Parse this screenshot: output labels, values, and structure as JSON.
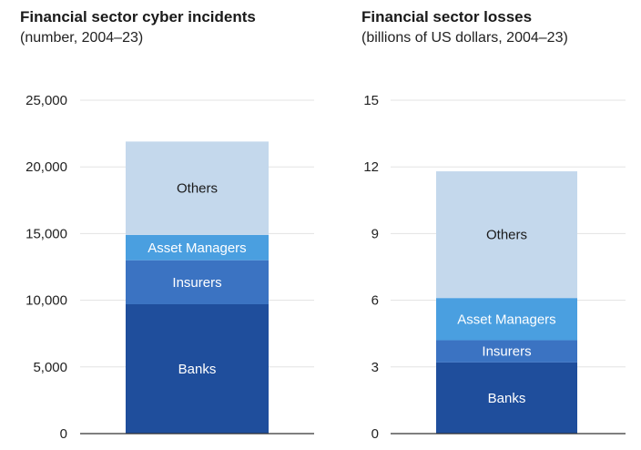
{
  "chart_data": [
    {
      "type": "bar",
      "stacked": true,
      "title": "Financial sector cyber incidents",
      "subtitle": "(number, 2004–23)",
      "ylim": [
        0,
        25000
      ],
      "yticks": [
        0,
        5000,
        10000,
        15000,
        20000,
        25000
      ],
      "ytick_labels": [
        "0",
        "5,000",
        "10,000",
        "15,000",
        "20,000",
        "25,000"
      ],
      "grid": true,
      "series": [
        {
          "name": "Banks",
          "value": 9700,
          "color": "#1f4e9c",
          "label_color": "#ffffff"
        },
        {
          "name": "Insurers",
          "value": 3300,
          "color": "#3b73c2",
          "label_color": "#ffffff"
        },
        {
          "name": "Asset Managers",
          "value": 1900,
          "color": "#4a9fe0",
          "label_color": "#ffffff"
        },
        {
          "name": "Others",
          "value": 7000,
          "color": "#c4d8ec",
          "label_color": "#1a1a1a"
        }
      ]
    },
    {
      "type": "bar",
      "stacked": true,
      "title": "Financial sector losses",
      "subtitle": "(billions of US dollars, 2004–23)",
      "ylim": [
        0,
        15
      ],
      "yticks": [
        0,
        3,
        6,
        9,
        12,
        15
      ],
      "ytick_labels": [
        "0",
        "3",
        "6",
        "9",
        "12",
        "15"
      ],
      "grid": true,
      "series": [
        {
          "name": "Banks",
          "value": 3.2,
          "color": "#1f4e9c",
          "label_color": "#ffffff"
        },
        {
          "name": "Insurers",
          "value": 1.0,
          "color": "#3b73c2",
          "label_color": "#ffffff"
        },
        {
          "name": "Asset Managers",
          "value": 1.9,
          "color": "#4a9fe0",
          "label_color": "#ffffff"
        },
        {
          "name": "Others",
          "value": 5.7,
          "color": "#c4d8ec",
          "label_color": "#1a1a1a"
        }
      ]
    }
  ]
}
